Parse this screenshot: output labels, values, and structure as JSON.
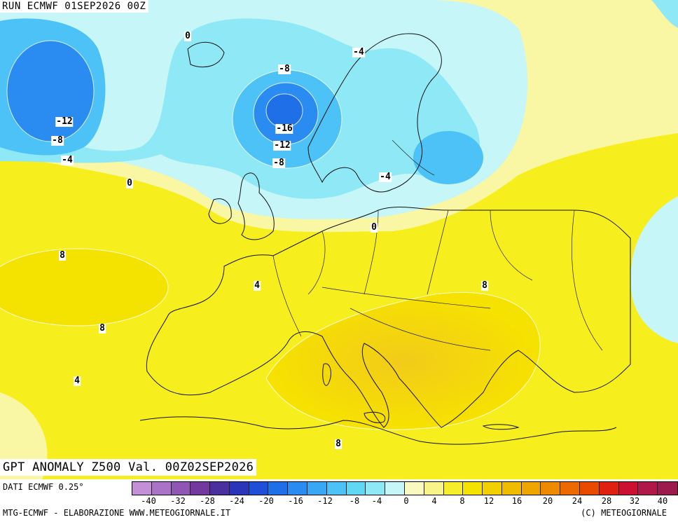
{
  "header": {
    "run_label": "RUN ECMWF 01SEP2026 00Z"
  },
  "footer": {
    "valid_label": "GPT ANOMALY Z500 Val. 00Z02SEP2026",
    "data_source": "DATI ECMWF 0.25°",
    "credits_left": "MTG-ECMWF - ELABORAZIONE WWW.METEOGIORNALE.IT",
    "credits_right": "(C) METEOGIORNALE"
  },
  "colorbar": {
    "colors": [
      "#c58fd8",
      "#ab73c8",
      "#8f56b4",
      "#74399e",
      "#4a2f9e",
      "#2b35b8",
      "#1f4fd6",
      "#1f6fe8",
      "#2a8cf0",
      "#38a8f4",
      "#4cc2f6",
      "#5fd8f4",
      "#8fe8f6",
      "#c6f6f8",
      "#fafac0",
      "#f8f48a",
      "#f6ee2a",
      "#f4e200",
      "#f2d000",
      "#f0bc00",
      "#efa500",
      "#ee8a00",
      "#ec6a00",
      "#e84a00",
      "#e02010",
      "#cc1030",
      "#b0184a",
      "#9c1a4e"
    ],
    "ticks": [
      "-40",
      "-32",
      "-28",
      "-24",
      "-20",
      "-16",
      "-12",
      "-8",
      "-4",
      "0",
      "4",
      "8",
      "12",
      "16",
      "20",
      "24",
      "28",
      "32",
      "40"
    ]
  },
  "contour_labels": [
    {
      "text": "0"
    },
    {
      "text": "-8"
    },
    {
      "text": "-4"
    },
    {
      "text": "-12"
    },
    {
      "text": "-8"
    },
    {
      "text": "-4"
    },
    {
      "text": "-16"
    },
    {
      "text": "-12"
    },
    {
      "text": "-8"
    },
    {
      "text": "0"
    },
    {
      "text": "-4"
    },
    {
      "text": "0"
    },
    {
      "text": "8"
    },
    {
      "text": "4"
    },
    {
      "text": "8"
    },
    {
      "text": "8"
    },
    {
      "text": "4"
    },
    {
      "text": "8"
    }
  ]
}
